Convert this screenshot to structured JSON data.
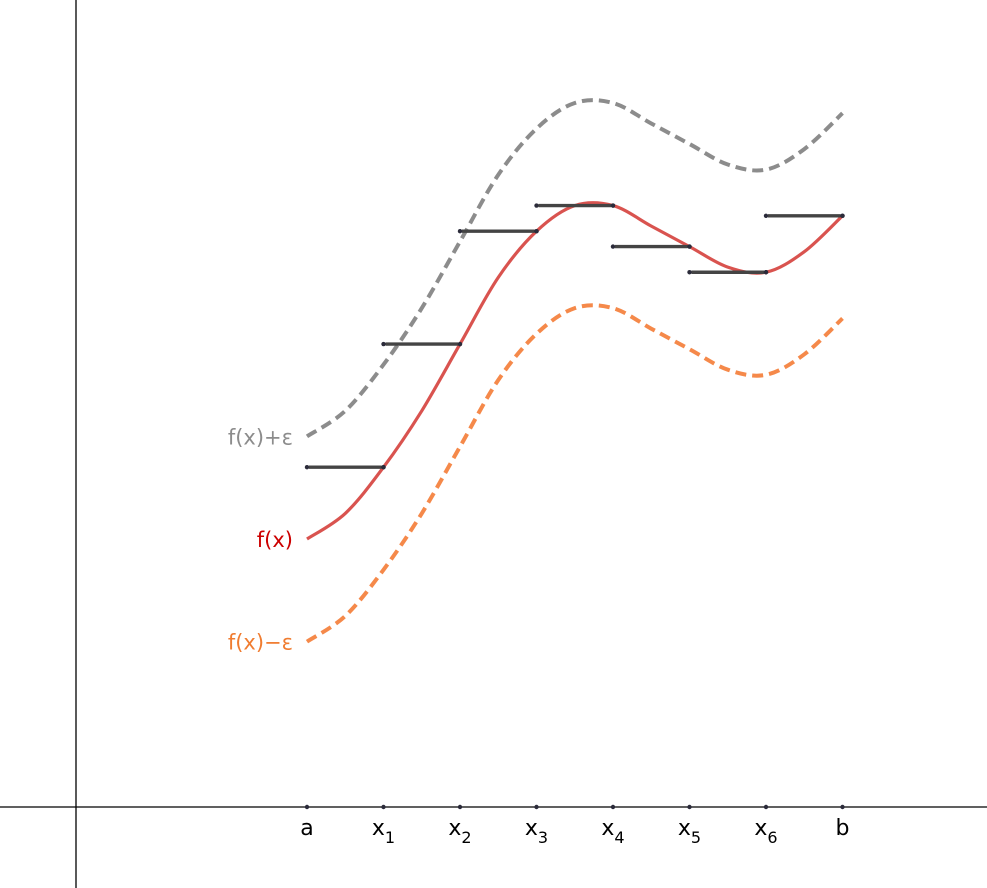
{
  "figure": {
    "axis_color": "#000000",
    "x_ticks": [
      {
        "name": "a",
        "x": 0,
        "label": "a",
        "sub": ""
      },
      {
        "name": "x1",
        "x": 1,
        "label": "x",
        "sub": "1"
      },
      {
        "name": "x2",
        "x": 2,
        "label": "x",
        "sub": "2"
      },
      {
        "name": "x3",
        "x": 3,
        "label": "x",
        "sub": "3"
      },
      {
        "name": "x4",
        "x": 4,
        "label": "x",
        "sub": "4"
      },
      {
        "name": "x5",
        "x": 5,
        "label": "x",
        "sub": "5"
      },
      {
        "name": "x6",
        "x": 6,
        "label": "x",
        "sub": "6"
      },
      {
        "name": "b",
        "x": 7,
        "label": "b",
        "sub": ""
      }
    ],
    "curves": [
      {
        "name": "f-upper",
        "label": "f(x)+ε",
        "color": "#8c8c8c",
        "dashed": true,
        "offset": 2
      },
      {
        "name": "f",
        "label": "f(x)",
        "color": "#cc0000",
        "line_color": "#d9534f",
        "dashed": false,
        "offset": 0
      },
      {
        "name": "f-lower",
        "label": "f(x)−ε",
        "color": "#f07c30",
        "line_color": "#f5894a",
        "dashed": true,
        "offset": -2
      }
    ],
    "f_samples": [
      [
        0,
        3.5
      ],
      [
        0.5,
        4.0
      ],
      [
        1,
        4.9
      ],
      [
        1.5,
        6.0
      ],
      [
        2,
        7.3
      ],
      [
        2.5,
        8.6
      ],
      [
        3,
        9.5
      ],
      [
        3.5,
        10.0
      ],
      [
        4,
        10.0
      ],
      [
        4.5,
        9.6
      ],
      [
        5,
        9.2
      ],
      [
        5.5,
        8.8
      ],
      [
        6,
        8.7
      ],
      [
        6.5,
        9.1
      ],
      [
        7,
        9.8
      ]
    ],
    "step_color": "#444444",
    "steps": [
      {
        "x0": 0,
        "x1": 1,
        "y": 4.9
      },
      {
        "x0": 1,
        "x1": 2,
        "y": 7.3
      },
      {
        "x0": 2,
        "x1": 3,
        "y": 9.5
      },
      {
        "x0": 3,
        "x1": 4,
        "y": 10.0
      },
      {
        "x0": 4,
        "x1": 5,
        "y": 9.2
      },
      {
        "x0": 5,
        "x1": 6,
        "y": 8.7
      },
      {
        "x0": 6,
        "x1": 7,
        "y": 9.8
      }
    ]
  }
}
